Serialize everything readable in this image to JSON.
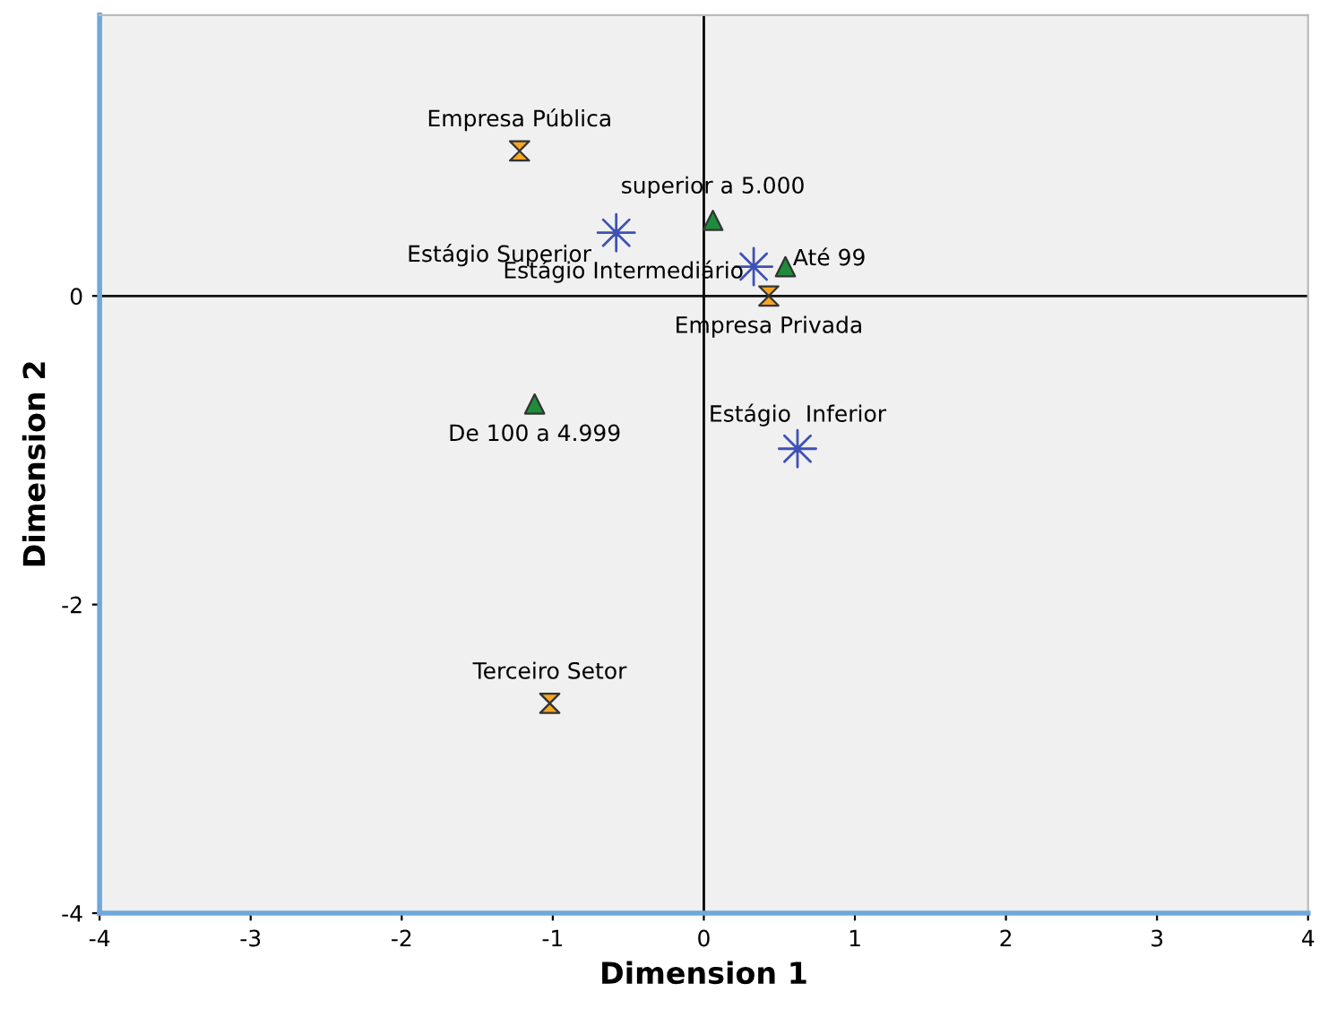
{
  "chart_data": {
    "type": "scatter",
    "xlabel": "Dimension 1",
    "ylabel": "Dimension 2",
    "xlim": [
      -4,
      4
    ],
    "ylim": [
      -4,
      1.82
    ],
    "xticks": [
      -4,
      -3,
      -2,
      -1,
      0,
      1,
      2,
      3,
      4
    ],
    "yticks": [
      -4,
      -2,
      0
    ],
    "grid": false,
    "series": [
      {
        "color": "#3f51b5",
        "marker": "star",
        "x": [
          -0.58,
          0.33,
          0.62
        ],
        "values": [
          0.41,
          0.19,
          -0.99
        ]
      },
      {
        "color": "#1e8c3a",
        "marker": "triangle",
        "x": [
          0.06,
          0.54,
          -1.12
        ],
        "values": [
          0.49,
          0.19,
          -0.7
        ]
      },
      {
        "color": "#f5a623",
        "x": [
          -1.22,
          0.43,
          -1.02
        ],
        "values": [
          0.94,
          0.0,
          -2.64
        ]
      }
    ],
    "ref_lines": [
      {
        "axis": "x",
        "value": 0,
        "color": "#000000"
      },
      {
        "axis": "y",
        "value": 0,
        "color": "#111111"
      }
    ],
    "annotations": [
      {
        "text": "Estágio Superior",
        "x": -0.58,
        "y": 0.41
      },
      {
        "text": "Estágio Intermediário",
        "x": 0.33,
        "y": 0.19
      },
      {
        "text": "Estágio  Inferior",
        "x": 0.62,
        "y": -0.99
      },
      {
        "text": "superior a 5.000",
        "x": 0.06,
        "y": 0.49
      },
      {
        "text": "Até 99",
        "x": 0.54,
        "y": 0.19
      },
      {
        "text": "De 100 a 4.999",
        "x": -1.12,
        "y": -0.7
      },
      {
        "text": "Empresa Pública",
        "x": -1.22,
        "y": 0.94
      },
      {
        "text": "Empresa Privada",
        "x": 0.43,
        "y": 0.0
      },
      {
        "text": "Terceiro Setor",
        "x": -1.02,
        "y": -2.64
      }
    ]
  }
}
